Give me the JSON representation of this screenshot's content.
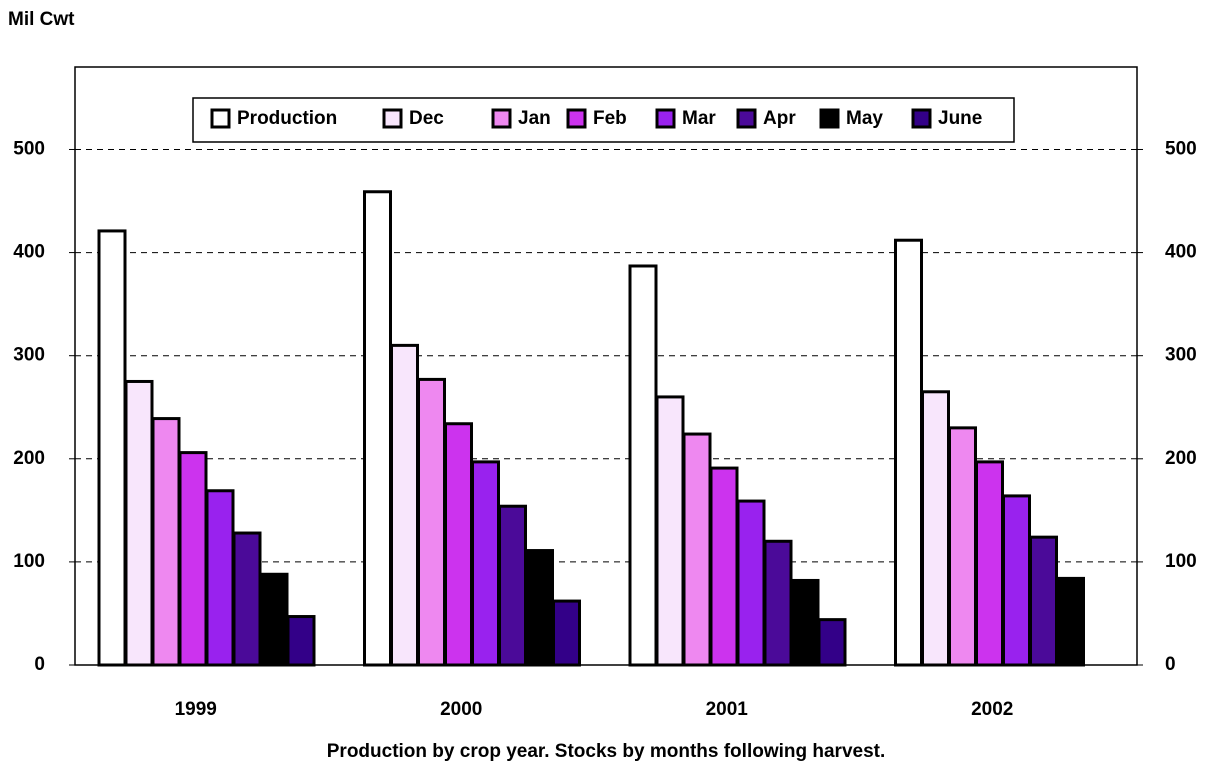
{
  "chart_data": {
    "type": "bar",
    "y_label": "Mil Cwt",
    "x_label": "Production by crop year.  Stocks by months following harvest.",
    "categories": [
      "1999",
      "2000",
      "2001",
      "2002"
    ],
    "series": [
      {
        "name": "Production",
        "color": "#ffffff",
        "values": [
          421,
          459,
          387,
          412
        ]
      },
      {
        "name": "Dec",
        "color": "#f8e6fc",
        "values": [
          275,
          310,
          260,
          265
        ]
      },
      {
        "name": "Jan",
        "color": "#ee88f0",
        "values": [
          239,
          277,
          224,
          230
        ]
      },
      {
        "name": "Feb",
        "color": "#cc33ee",
        "values": [
          206,
          234,
          191,
          197
        ]
      },
      {
        "name": "Mar",
        "color": "#9922ee",
        "values": [
          169,
          197,
          159,
          164
        ]
      },
      {
        "name": "Apr",
        "color": "#4b0a99",
        "values": [
          128,
          154,
          120,
          124
        ]
      },
      {
        "name": "May",
        "color": "#000000",
        "values": [
          88,
          111,
          82,
          84
        ]
      },
      {
        "name": "June",
        "color": "#330088",
        "values": [
          47,
          62,
          44,
          null
        ]
      }
    ],
    "ylim": [
      0,
      580
    ],
    "yticks": [
      0,
      100,
      200,
      300,
      400,
      500
    ],
    "y2lim": [
      0,
      580
    ],
    "y2ticks": [
      0,
      100,
      200,
      300,
      400,
      500
    ],
    "grid": true,
    "legend": "top"
  }
}
